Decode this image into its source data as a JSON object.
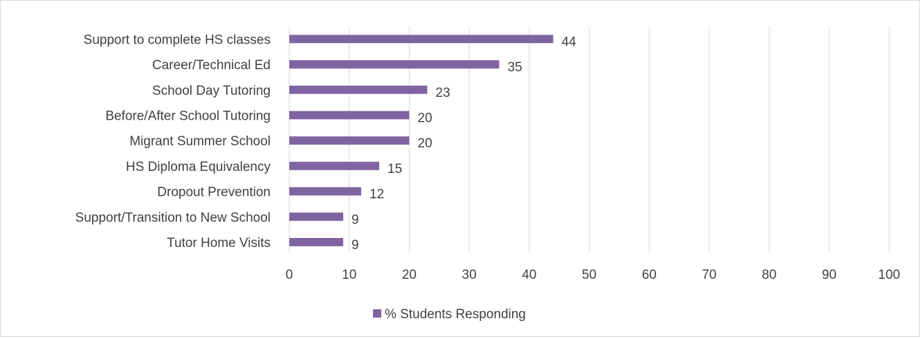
{
  "chart_data": {
    "type": "bar",
    "orientation": "horizontal",
    "categories": [
      "Support to complete HS classes",
      "Career/Technical Ed",
      "School Day Tutoring",
      "Before/After School Tutoring",
      "Migrant Summer School",
      "HS Diploma Equivalency",
      "Dropout Prevention",
      "Support/Transition to New School",
      "Tutor Home Visits"
    ],
    "series": [
      {
        "name": "% Students Responding",
        "values": [
          44,
          35,
          23,
          20,
          20,
          15,
          12,
          9,
          9
        ]
      }
    ],
    "xlim": [
      0,
      100
    ],
    "xticks": [
      0,
      10,
      20,
      30,
      40,
      50,
      60,
      70,
      80,
      90,
      100
    ],
    "grid": "vertical",
    "legend": "bottom",
    "colors": {
      "bar": "#8064a2",
      "grid": "#d9d9d9",
      "text": "#404040"
    }
  }
}
